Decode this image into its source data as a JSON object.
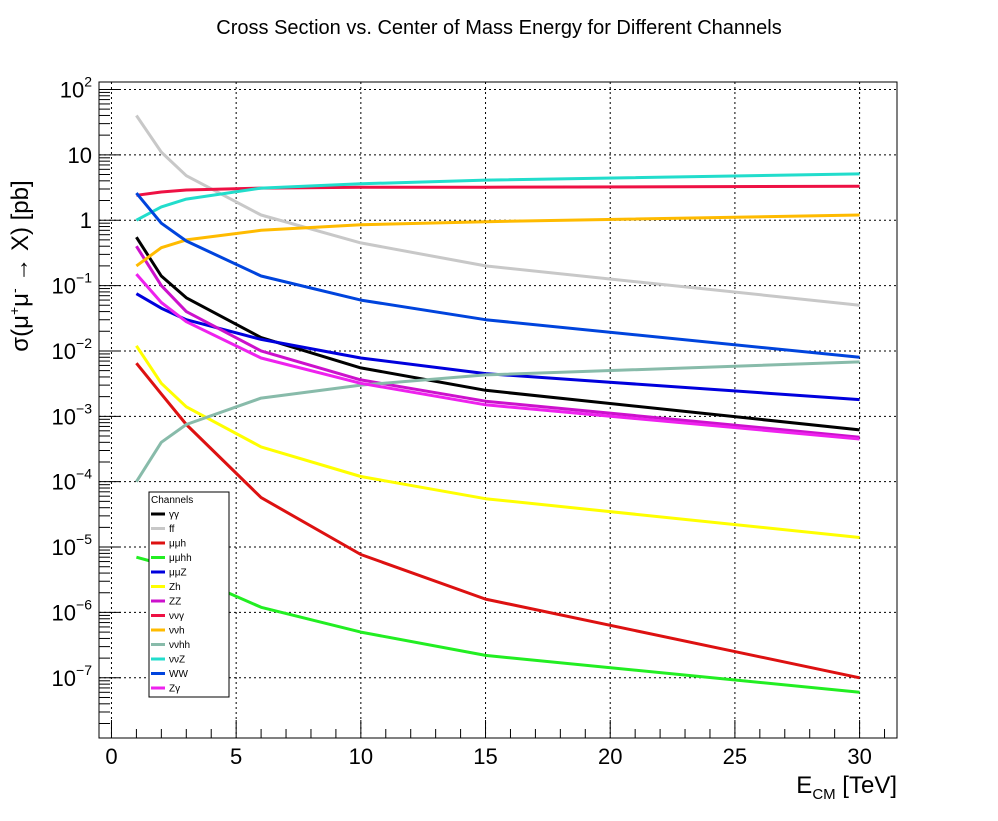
{
  "chart_data": {
    "type": "line",
    "title": "Cross Section vs. Center of Mass Energy for Different Channels",
    "xlabel": {
      "main": "E",
      "sub": "CM",
      "unit": " [TeV]"
    },
    "ylabel": {
      "pre": "σ(μ",
      "sup1": "+",
      "mid": "μ",
      "sup2": "-",
      "post": " → X) [pb]"
    },
    "xlim": [
      -0.5,
      31.5
    ],
    "ylim": [
      1.2e-08,
      130
    ],
    "yscale": "log",
    "grid": true,
    "x_ticks": [
      0,
      5,
      10,
      15,
      20,
      25,
      30
    ],
    "y_ticks": [
      {
        "value": 100,
        "base": "10",
        "exp": "2"
      },
      {
        "value": 10,
        "base": "10",
        "exp": ""
      },
      {
        "value": 1,
        "base": "1",
        "exp": ""
      },
      {
        "value": 0.1,
        "base": "10",
        "exp": "−1"
      },
      {
        "value": 0.01,
        "base": "10",
        "exp": "−2"
      },
      {
        "value": 0.001,
        "base": "10",
        "exp": "−3"
      },
      {
        "value": 0.0001,
        "base": "10",
        "exp": "−4"
      },
      {
        "value": 1e-05,
        "base": "10",
        "exp": "−5"
      },
      {
        "value": 1e-06,
        "base": "10",
        "exp": "−6"
      },
      {
        "value": 1e-07,
        "base": "10",
        "exp": "−7"
      }
    ],
    "legend": {
      "title": "Channels",
      "placement": "bottom-left"
    },
    "x": [
      1,
      2,
      3,
      6,
      10,
      15,
      30
    ],
    "series": [
      {
        "name": "γγ",
        "color": "#000000",
        "values": [
          0.55,
          0.14,
          0.065,
          0.016,
          0.0055,
          0.0025,
          0.00062
        ]
      },
      {
        "name": "ff",
        "color": "#c8c8c8",
        "values": [
          40,
          11,
          4.8,
          1.2,
          0.45,
          0.2,
          0.05
        ]
      },
      {
        "name": "μμh",
        "color": "#dd1111",
        "values": [
          0.0065,
          0.0022,
          0.00075,
          5.7e-05,
          7.7e-06,
          1.6e-06,
          1e-07
        ]
      },
      {
        "name": "μμhh",
        "color": "#22ee22",
        "values": [
          7e-06,
          5.5e-06,
          3.8e-06,
          1.2e-06,
          5e-07,
          2.2e-07,
          6e-08
        ]
      },
      {
        "name": "μμZ",
        "color": "#0000dd",
        "values": [
          0.075,
          0.045,
          0.03,
          0.015,
          0.0078,
          0.0045,
          0.0018
        ]
      },
      {
        "name": "Zh",
        "color": "#ffff00",
        "values": [
          0.012,
          0.0032,
          0.0014,
          0.00034,
          0.00012,
          5.5e-05,
          1.4e-05
        ]
      },
      {
        "name": "ZZ",
        "color": "#cc11cc",
        "values": [
          0.4,
          0.1,
          0.04,
          0.01,
          0.0036,
          0.0017,
          0.00048
        ]
      },
      {
        "name": "ννγ",
        "color": "#ee1144",
        "values": [
          2.4,
          2.7,
          2.9,
          3.1,
          3.2,
          3.2,
          3.3
        ]
      },
      {
        "name": "ννh",
        "color": "#ffbb00",
        "values": [
          0.2,
          0.38,
          0.5,
          0.7,
          0.85,
          0.95,
          1.2
        ]
      },
      {
        "name": "ννhh",
        "color": "#88bbaa",
        "values": [
          0.0001,
          0.0004,
          0.00075,
          0.0019,
          0.003,
          0.0043,
          0.0068
        ]
      },
      {
        "name": "ννZ",
        "color": "#22ddcc",
        "values": [
          1.0,
          1.6,
          2.1,
          3.1,
          3.6,
          4.1,
          5.1
        ]
      },
      {
        "name": "WW",
        "color": "#0044dd",
        "values": [
          2.6,
          0.9,
          0.48,
          0.14,
          0.06,
          0.03,
          0.008
        ]
      },
      {
        "name": "Zγ",
        "color": "#ee22ee",
        "values": [
          0.15,
          0.055,
          0.028,
          0.0078,
          0.0032,
          0.0015,
          0.00045
        ]
      }
    ]
  }
}
